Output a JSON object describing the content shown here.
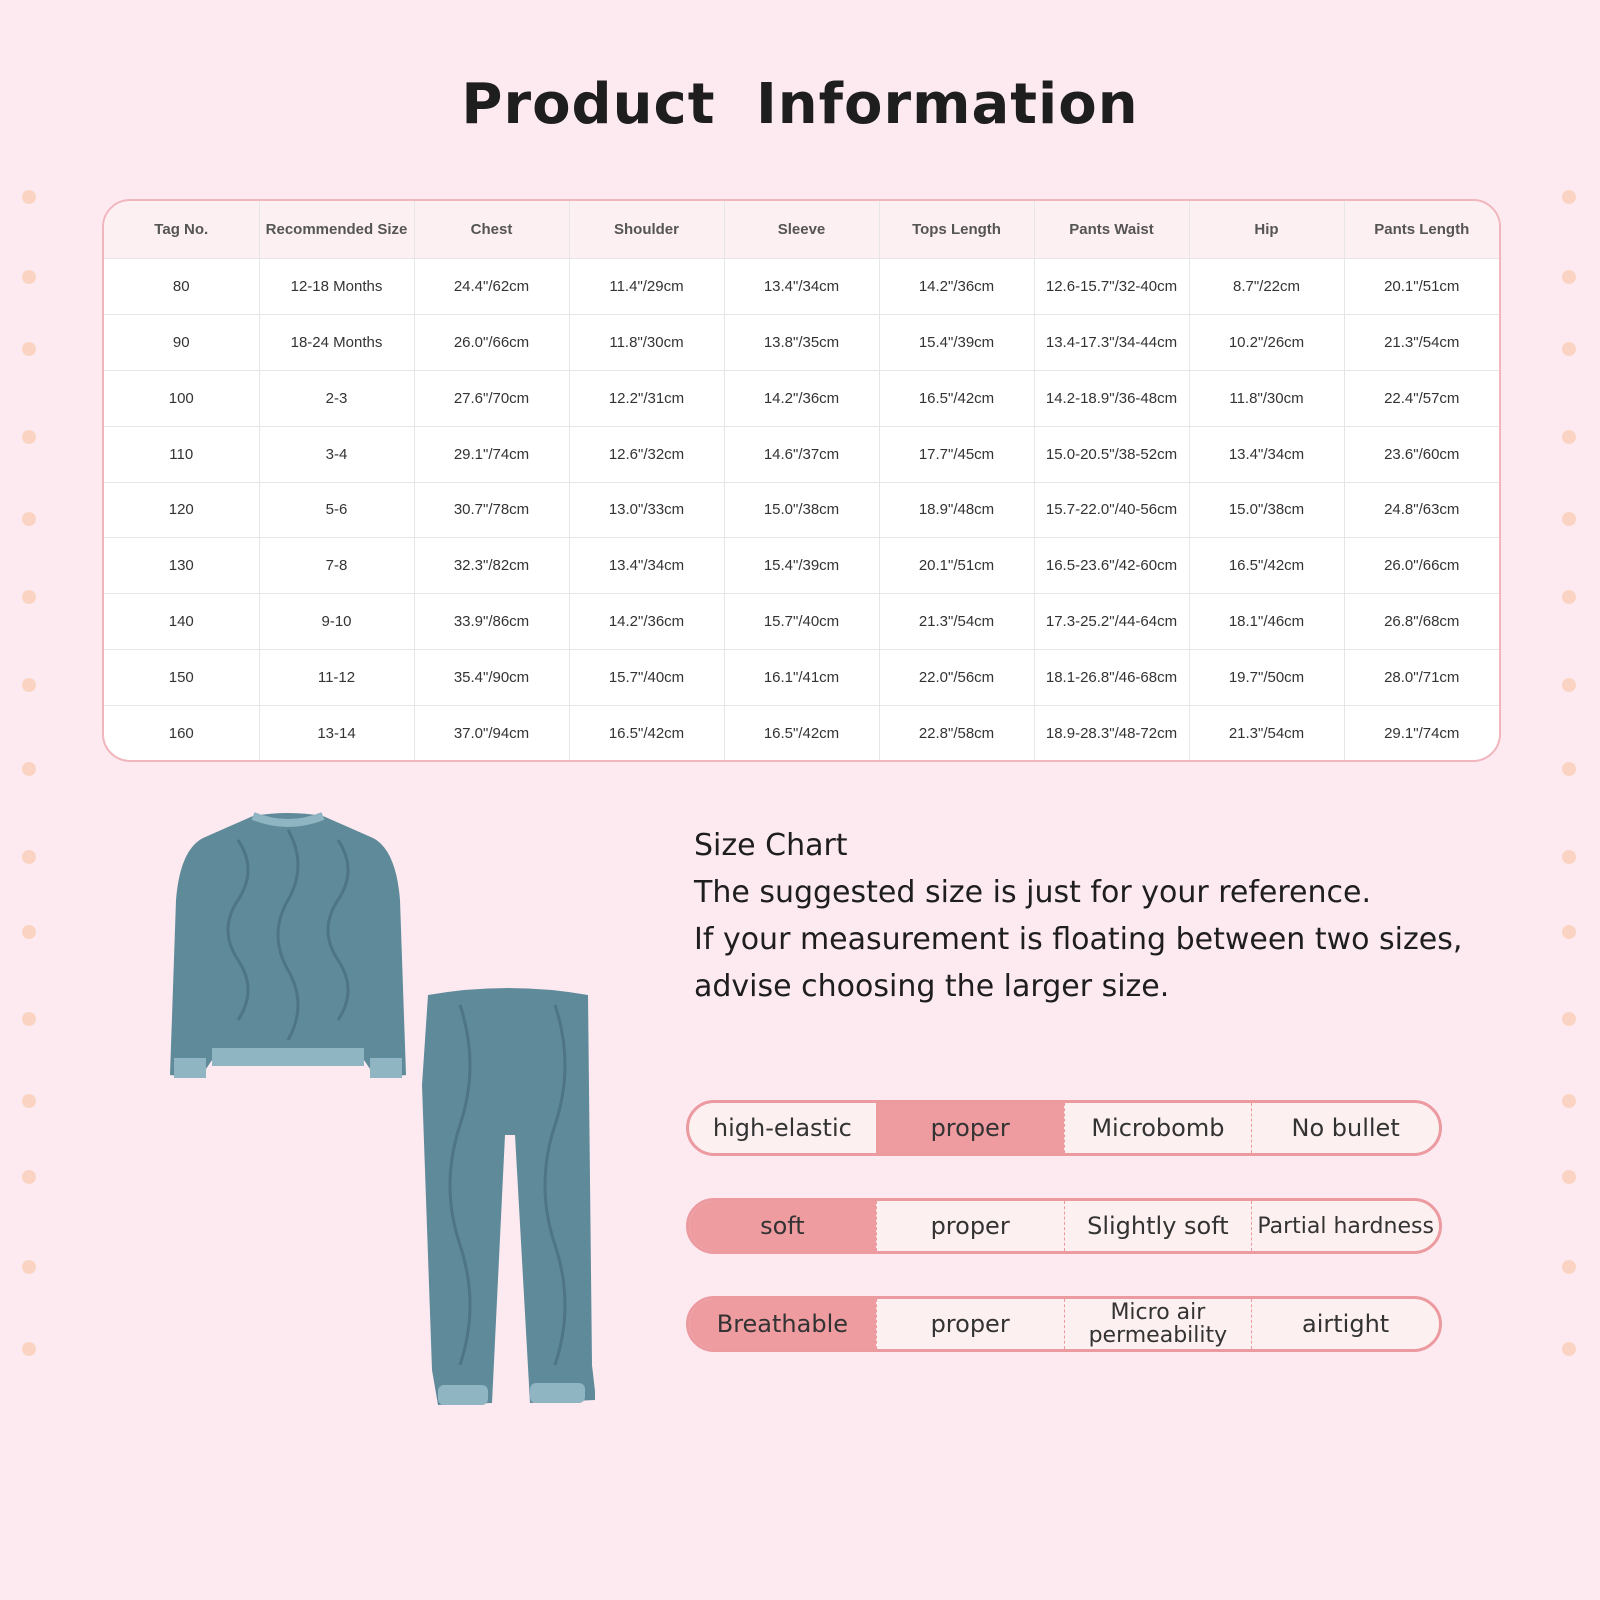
{
  "title": "Product  Information",
  "colors": {
    "background": "#fdeaf0",
    "accent": "#ef9ca1",
    "border": "#f0b5bd",
    "garment": "#5f8a9a"
  },
  "size_table": {
    "headers": [
      "Tag No.",
      "Recommended Size",
      "Chest",
      "Shoulder",
      "Sleeve",
      "Tops Length",
      "Pants Waist",
      "Hip",
      "Pants Length"
    ],
    "rows": [
      [
        "80",
        "12-18 Months",
        "24.4\"/62cm",
        "11.4\"/29cm",
        "13.4\"/34cm",
        "14.2\"/36cm",
        "12.6-15.7\"/32-40cm",
        "8.7\"/22cm",
        "20.1\"/51cm"
      ],
      [
        "90",
        "18-24 Months",
        "26.0\"/66cm",
        "11.8\"/30cm",
        "13.8\"/35cm",
        "15.4\"/39cm",
        "13.4-17.3\"/34-44cm",
        "10.2\"/26cm",
        "21.3\"/54cm"
      ],
      [
        "100",
        "2-3",
        "27.6\"/70cm",
        "12.2\"/31cm",
        "14.2\"/36cm",
        "16.5\"/42cm",
        "14.2-18.9\"/36-48cm",
        "11.8\"/30cm",
        "22.4\"/57cm"
      ],
      [
        "110",
        "3-4",
        "29.1\"/74cm",
        "12.6\"/32cm",
        "14.6\"/37cm",
        "17.7\"/45cm",
        "15.0-20.5\"/38-52cm",
        "13.4\"/34cm",
        "23.6\"/60cm"
      ],
      [
        "120",
        "5-6",
        "30.7\"/78cm",
        "13.0\"/33cm",
        "15.0\"/38cm",
        "18.9\"/48cm",
        "15.7-22.0\"/40-56cm",
        "15.0\"/38cm",
        "24.8\"/63cm"
      ],
      [
        "130",
        "7-8",
        "32.3\"/82cm",
        "13.4\"/34cm",
        "15.4\"/39cm",
        "20.1\"/51cm",
        "16.5-23.6\"/42-60cm",
        "16.5\"/42cm",
        "26.0\"/66cm"
      ],
      [
        "140",
        "9-10",
        "33.9\"/86cm",
        "14.2\"/36cm",
        "15.7\"/40cm",
        "21.3\"/54cm",
        "17.3-25.2\"/44-64cm",
        "18.1\"/46cm",
        "26.8\"/68cm"
      ],
      [
        "150",
        "11-12",
        "35.4\"/90cm",
        "15.7\"/40cm",
        "16.1\"/41cm",
        "22.0\"/56cm",
        "18.1-26.8\"/46-68cm",
        "19.7\"/50cm",
        "28.0\"/71cm"
      ],
      [
        "160",
        "13-14",
        "37.0\"/94cm",
        "16.5\"/42cm",
        "16.5\"/42cm",
        "22.8\"/58cm",
        "18.9-28.3\"/48-72cm",
        "21.3\"/54cm",
        "29.1\"/74cm"
      ]
    ]
  },
  "note": {
    "heading": "Size Chart",
    "lines": [
      "The suggested size is just for your reference.",
      "If your measurement is floating between two sizes,",
      "advise choosing the larger size."
    ]
  },
  "features": [
    {
      "options": [
        "high-elastic",
        "proper",
        "Microbomb",
        "No bullet"
      ],
      "selected_index": 1
    },
    {
      "options": [
        "soft",
        "proper",
        "Slightly soft",
        "Partial hardness"
      ],
      "selected_index": 0
    },
    {
      "options": [
        "Breathable",
        "proper",
        "Micro air permeability",
        "airtight"
      ],
      "selected_index": 0
    }
  ]
}
